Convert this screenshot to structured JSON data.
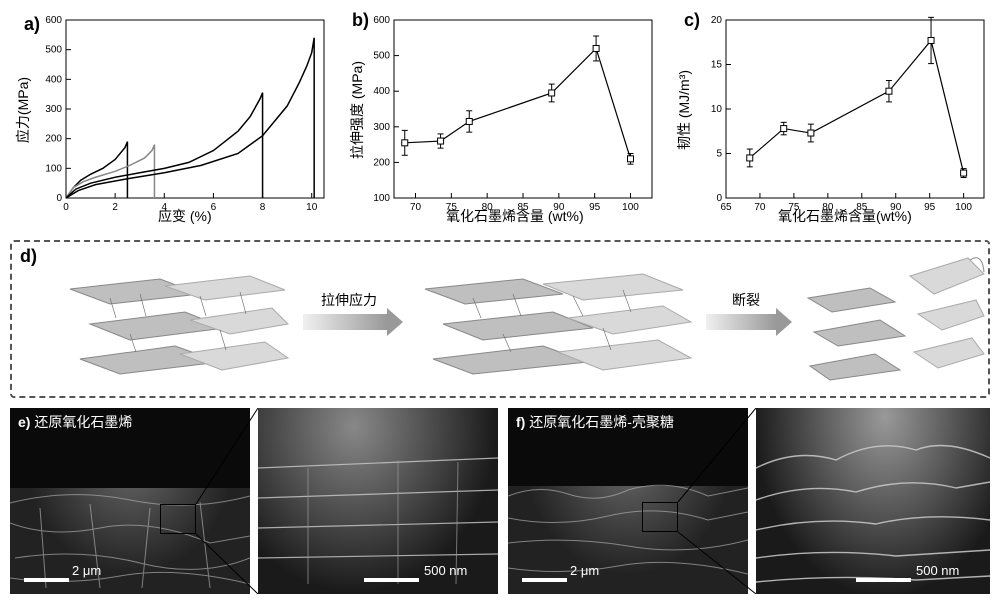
{
  "panel_a": {
    "label": "a)",
    "type": "line",
    "xlabel": "应变 (%)",
    "ylabel": "应力(MPa)",
    "xlim": [
      0,
      10.5
    ],
    "ylim": [
      0,
      600
    ],
    "xtick_step": 2,
    "ytick_step": 100,
    "xticks": [
      0,
      2,
      4,
      6,
      8,
      10
    ],
    "yticks": [
      0,
      100,
      200,
      300,
      400,
      500,
      600
    ],
    "label_fontsize": 14,
    "tick_fontsize": 10,
    "background_color": "#ffffff",
    "border_color": "#000000",
    "curves": [
      {
        "color": "#000000",
        "line_width": 1.5,
        "x": [
          0,
          0.3,
          0.6,
          1.0,
          1.5,
          2.0,
          2.4,
          2.5,
          2.5
        ],
        "y": [
          0,
          35,
          60,
          80,
          100,
          130,
          170,
          190,
          0
        ]
      },
      {
        "color": "#888888",
        "line_width": 1.5,
        "x": [
          0,
          0.3,
          0.7,
          1.2,
          2.0,
          2.6,
          3.2,
          3.5,
          3.6,
          3.6
        ],
        "y": [
          0,
          35,
          55,
          70,
          90,
          110,
          135,
          160,
          180,
          0
        ]
      },
      {
        "color": "#000000",
        "line_width": 1.5,
        "x": [
          0,
          0.4,
          1.0,
          2.0,
          3.0,
          4.0,
          5.0,
          6.0,
          7.0,
          7.5,
          7.9,
          8.0,
          8.0
        ],
        "y": [
          0,
          30,
          50,
          70,
          85,
          100,
          120,
          160,
          225,
          275,
          335,
          355,
          0
        ]
      },
      {
        "color": "#000000",
        "line_width": 1.5,
        "x": [
          0,
          0.5,
          1.2,
          2.5,
          4.0,
          5.5,
          7.0,
          8.0,
          9.0,
          9.5,
          9.8,
          10.0,
          10.1,
          10.1
        ],
        "y": [
          0,
          25,
          45,
          65,
          85,
          110,
          150,
          210,
          310,
          390,
          445,
          490,
          540,
          0
        ]
      }
    ]
  },
  "panel_b": {
    "label": "b)",
    "type": "line-scatter-errorbar",
    "xlabel": "氧化石墨烯含量 (wt%)",
    "ylabel": "拉伸强度 (MPa)",
    "xlim": [
      67,
      103
    ],
    "ylim": [
      100,
      600
    ],
    "xticks": [
      70,
      75,
      80,
      85,
      90,
      95,
      100
    ],
    "yticks": [
      100,
      200,
      300,
      400,
      500,
      600
    ],
    "marker": "square-open",
    "line_color": "#000000",
    "line_width": 1.2,
    "marker_size": 6,
    "points_x": [
      68.5,
      73.5,
      77.5,
      89,
      95.2,
      100
    ],
    "points_y": [
      255,
      260,
      315,
      395,
      520,
      210
    ],
    "error_y": [
      35,
      20,
      30,
      25,
      35,
      15
    ],
    "label_fontsize": 14,
    "tick_fontsize": 10
  },
  "panel_c": {
    "label": "c)",
    "type": "line-scatter-errorbar",
    "xlabel": "氧化石墨烯含量(wt%)",
    "ylabel": "韧性 (MJ/m³)",
    "xlim": [
      65,
      103
    ],
    "ylim": [
      0,
      20
    ],
    "xticks": [
      65,
      70,
      75,
      80,
      85,
      90,
      95,
      100
    ],
    "yticks": [
      0,
      5,
      10,
      15,
      20
    ],
    "marker": "square-open",
    "line_color": "#000000",
    "line_width": 1.2,
    "marker_size": 6,
    "points_x": [
      68.5,
      73.5,
      77.5,
      89,
      95.2,
      100
    ],
    "points_y": [
      4.5,
      7.8,
      7.3,
      12.0,
      17.7,
      2.8
    ],
    "error_y": [
      1.0,
      0.7,
      1.0,
      1.2,
      2.6,
      0.5
    ],
    "label_fontsize": 14,
    "tick_fontsize": 10
  },
  "panel_d": {
    "label": "d)",
    "dash_color": "#555555",
    "arrow1_label": "拉伸应力",
    "arrow2_label": "断裂",
    "arrow_gradient_from": "#f0f0f0",
    "arrow_gradient_to": "#999999"
  },
  "panel_e": {
    "label_prefix": "e)",
    "title": "还原氧化石墨烯",
    "title_color": "#ffffff",
    "scale_left": "2 μm",
    "scale_right": "500 nm",
    "scale_bar_width_left": 45,
    "scale_bar_width_right": 55,
    "bg": "#1a1a1a"
  },
  "panel_f": {
    "label_prefix": "f)",
    "title": "还原氧化石墨烯-壳聚糖",
    "title_color": "#ffffff",
    "scale_left": "2 μm",
    "scale_right": "500 nm",
    "scale_bar_width_left": 45,
    "scale_bar_width_right": 55,
    "bg": "#1a1a1a"
  },
  "layout": {
    "chart_border_color": "#000000",
    "chart_border_width": 1
  }
}
